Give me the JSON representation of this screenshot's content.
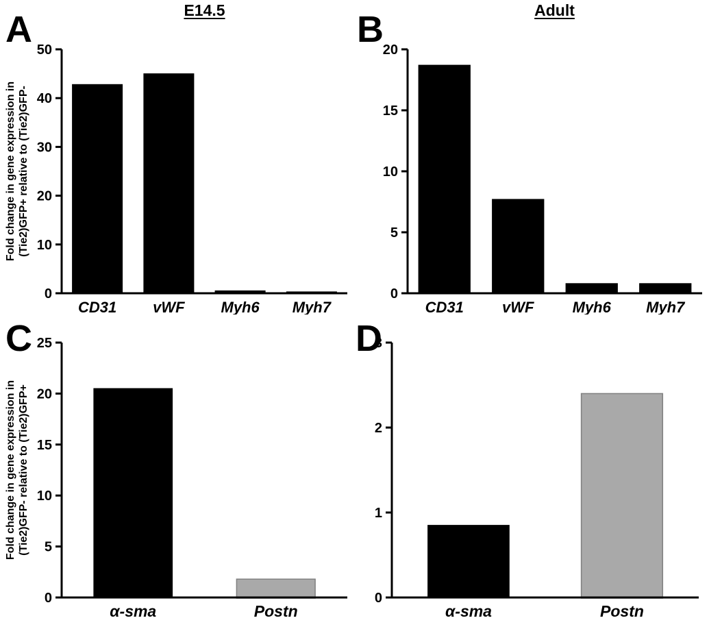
{
  "figure": {
    "background": "#ffffff",
    "bar_black": "#000000",
    "bar_gray": "#a9a9a9",
    "panels": {
      "A": {
        "letter": "A",
        "title": "E14.5",
        "ylabel_line1": "Fold change in gene expression in",
        "ylabel_line2": "(Tie2)GFP+ relative to (Tie2)GFP-"
      },
      "B": {
        "letter": "B",
        "title": "Adult"
      },
      "C": {
        "letter": "C",
        "ylabel_line1": "Fold change in gene expression in",
        "ylabel_line2": "(Tie2)GFP- relative to (Tie2)GFP+"
      },
      "D": {
        "letter": "D"
      }
    }
  },
  "chart_data": [
    {
      "type": "bar",
      "panel": "A",
      "title": "E14.5",
      "categories": [
        "CD31",
        "vWF",
        "Myh6",
        "Myh7"
      ],
      "values": [
        42.8,
        45,
        0.5,
        0.3
      ],
      "xlabel": "",
      "ylabel": "Fold change in gene expression in (Tie2)GFP+ relative to (Tie2)GFP-",
      "ylim": [
        0,
        50
      ],
      "yticks": [
        0,
        10,
        20,
        30,
        40,
        50
      ],
      "bar_colors": [
        "#000000",
        "#000000",
        "#000000",
        "#000000"
      ],
      "grid": false,
      "legend": false
    },
    {
      "type": "bar",
      "panel": "B",
      "title": "Adult",
      "categories": [
        "CD31",
        "vWF",
        "Myh6",
        "Myh7"
      ],
      "values": [
        18.7,
        7.7,
        0.8,
        0.8
      ],
      "xlabel": "",
      "ylabel": "",
      "ylim": [
        0,
        20
      ],
      "yticks": [
        0,
        5,
        10,
        15,
        20
      ],
      "bar_colors": [
        "#000000",
        "#000000",
        "#000000",
        "#000000"
      ],
      "grid": false,
      "legend": false
    },
    {
      "type": "bar",
      "panel": "C",
      "title": "",
      "categories": [
        "α-sma",
        "Postn"
      ],
      "values": [
        20.5,
        1.8
      ],
      "xlabel": "",
      "ylabel": "Fold change in gene expression in (Tie2)GFP- relative to (Tie2)GFP+",
      "ylim": [
        0,
        25
      ],
      "yticks": [
        0,
        5,
        10,
        15,
        20,
        25
      ],
      "bar_colors": [
        "#000000",
        "#a9a9a9"
      ],
      "grid": false,
      "legend": false
    },
    {
      "type": "bar",
      "panel": "D",
      "title": "",
      "categories": [
        "α-sma",
        "Postn"
      ],
      "values": [
        0.85,
        2.4
      ],
      "xlabel": "",
      "ylabel": "",
      "ylim": [
        0,
        3
      ],
      "yticks": [
        0,
        1,
        2,
        3
      ],
      "bar_colors": [
        "#000000",
        "#a9a9a9"
      ],
      "grid": false,
      "legend": false
    }
  ]
}
